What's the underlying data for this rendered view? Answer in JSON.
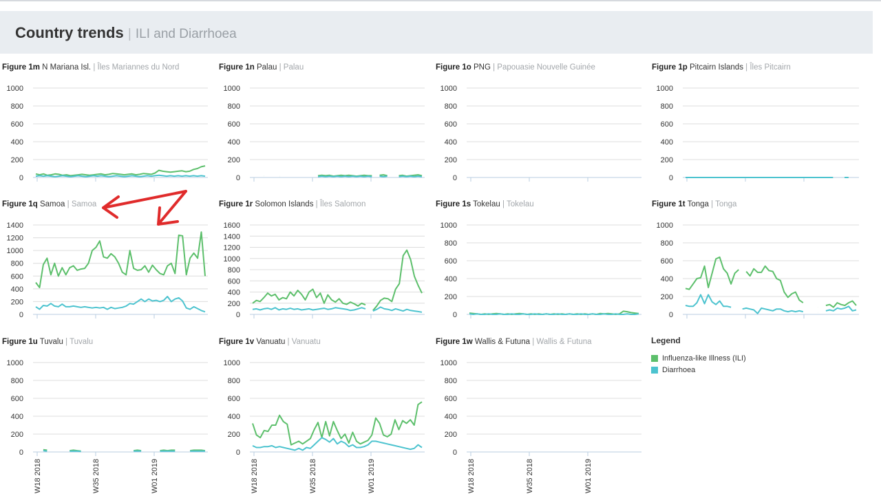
{
  "header": {
    "title": "Country trends",
    "separator": "|",
    "subtitle": "ILI and Diarrhoea"
  },
  "legend": {
    "title": "Legend",
    "items": [
      {
        "label": "Influenza-like Illness (ILI)",
        "color": "#5cbf6b"
      },
      {
        "label": "Diarrhoea",
        "color": "#4cc3cf"
      }
    ]
  },
  "chart_data": [
    {
      "type": "line",
      "figure": "Figure 1m",
      "name": "N Mariana Isl.",
      "name_fr": "Îles Mariannes du Nord",
      "ylim": [
        0,
        1000
      ],
      "yticks": [
        "0",
        "200",
        "400",
        "600",
        "800",
        "1000"
      ],
      "xticks": [],
      "series": [
        {
          "name": "Influenza-like Illness (ILI)",
          "color": "#5cbf6b",
          "values": [
            40,
            30,
            40,
            25,
            30,
            40,
            35,
            25,
            30,
            20,
            25,
            30,
            35,
            30,
            25,
            30,
            35,
            40,
            30,
            35,
            45,
            40,
            35,
            30,
            35,
            40,
            30,
            35,
            45,
            40,
            35,
            50,
            80,
            70,
            65,
            60,
            65,
            70,
            75,
            65,
            70,
            90,
            100,
            120,
            130
          ]
        },
        {
          "name": "Diarrhoea",
          "color": "#4cc3cf",
          "values": [
            15,
            20,
            15,
            20,
            15,
            10,
            15,
            20,
            15,
            10,
            15,
            20,
            15,
            10,
            15,
            20,
            15,
            20,
            15,
            10,
            15,
            20,
            15,
            10,
            15,
            20,
            15,
            10,
            15,
            20,
            15,
            20,
            25,
            20,
            15,
            20,
            15,
            20,
            15,
            20,
            15,
            20,
            15,
            20,
            15
          ]
        }
      ]
    },
    {
      "type": "line",
      "figure": "Figure 1n",
      "name": "Palau",
      "name_fr": "Palau",
      "ylim": [
        0,
        1000
      ],
      "yticks": [
        "0",
        "200",
        "400",
        "600",
        "800",
        "1000"
      ],
      "xticks": [],
      "series": [
        {
          "name": "Influenza-like Illness (ILI)",
          "color": "#5cbf6b",
          "values": [
            null,
            null,
            null,
            20,
            null,
            null,
            null,
            15,
            null,
            null,
            null,
            null,
            null,
            null,
            null,
            null,
            null,
            20,
            25,
            20,
            25,
            15,
            20,
            25,
            20,
            25,
            20,
            15,
            20,
            25,
            20,
            20,
            null,
            25,
            30,
            20,
            null,
            null,
            20,
            25,
            15,
            20,
            25,
            30,
            20
          ]
        },
        {
          "name": "Diarrhoea",
          "color": "#4cc3cf",
          "values": [
            null,
            null,
            null,
            15,
            null,
            null,
            null,
            10,
            null,
            null,
            null,
            null,
            null,
            null,
            null,
            null,
            null,
            10,
            15,
            10,
            15,
            10,
            15,
            10,
            15,
            10,
            15,
            10,
            15,
            10,
            15,
            10,
            null,
            15,
            10,
            15,
            null,
            null,
            10,
            15,
            10,
            15,
            10,
            15,
            10
          ]
        }
      ]
    },
    {
      "type": "line",
      "figure": "Figure 1o",
      "name": "PNG",
      "name_fr": "Papouasie Nouvelle Guinée",
      "ylim": [
        0,
        1000
      ],
      "yticks": [
        "0",
        "200",
        "400",
        "600",
        "800",
        "1000"
      ],
      "xticks": [],
      "series": []
    },
    {
      "type": "line",
      "figure": "Figure 1p",
      "name": "Pitcairn Islands",
      "name_fr": "Îles Pitcairn",
      "ylim": [
        0,
        1000
      ],
      "yticks": [
        "0",
        "200",
        "400",
        "600",
        "800",
        "1000"
      ],
      "xticks": [],
      "series": [
        {
          "name": "Influenza-like Illness (ILI)",
          "color": "#5cbf6b",
          "values": [
            0,
            0,
            0,
            0,
            0,
            0,
            0,
            0,
            0,
            0,
            0,
            0,
            0,
            0,
            0,
            0,
            0,
            0,
            0,
            0,
            0,
            0,
            0,
            0,
            0,
            0,
            0,
            0,
            0,
            0,
            0,
            0,
            0,
            0,
            0,
            0,
            0,
            0,
            0,
            null,
            null,
            0,
            0,
            null,
            null
          ]
        },
        {
          "name": "Diarrhoea",
          "color": "#4cc3cf",
          "values": [
            0,
            0,
            0,
            0,
            0,
            0,
            0,
            0,
            0,
            0,
            0,
            0,
            0,
            0,
            0,
            0,
            0,
            0,
            0,
            0,
            0,
            0,
            0,
            0,
            0,
            0,
            0,
            0,
            0,
            0,
            0,
            0,
            0,
            0,
            0,
            0,
            0,
            0,
            0,
            null,
            null,
            0,
            0,
            null,
            null
          ]
        }
      ]
    },
    {
      "type": "line",
      "figure": "Figure 1q",
      "name": "Samoa",
      "name_fr": "Samoa",
      "ylim": [
        0,
        1400
      ],
      "yticks": [
        "0",
        "200",
        "400",
        "600",
        "800",
        "1000",
        "1200",
        "1400"
      ],
      "xticks": [],
      "series": [
        {
          "name": "Influenza-like Illness (ILI)",
          "color": "#5cbf6b",
          "values": [
            500,
            420,
            780,
            880,
            620,
            800,
            600,
            730,
            620,
            730,
            760,
            690,
            710,
            720,
            800,
            1000,
            1050,
            1150,
            900,
            880,
            950,
            900,
            800,
            660,
            620,
            1000,
            720,
            690,
            700,
            760,
            660,
            770,
            700,
            640,
            620,
            760,
            800,
            640,
            1240,
            1230,
            620,
            880,
            960,
            880,
            1290,
            600
          ]
        },
        {
          "name": "Diarrhoea",
          "color": "#4cc3cf",
          "values": [
            120,
            80,
            140,
            130,
            170,
            130,
            120,
            160,
            120,
            120,
            130,
            120,
            110,
            120,
            110,
            100,
            110,
            100,
            110,
            80,
            110,
            90,
            100,
            110,
            130,
            170,
            160,
            200,
            240,
            200,
            240,
            210,
            220,
            200,
            220,
            280,
            200,
            240,
            260,
            210,
            100,
            80,
            120,
            90,
            60,
            40
          ]
        }
      ]
    },
    {
      "type": "line",
      "figure": "Figure 1r",
      "name": "Solomon Islands",
      "name_fr": "Îles Salomon",
      "ylim": [
        0,
        1600
      ],
      "yticks": [
        "0",
        "200",
        "400",
        "600",
        "800",
        "1000",
        "1200",
        "1400",
        "1600"
      ],
      "xticks": [],
      "series": [
        {
          "name": "Influenza-like Illness (ILI)",
          "color": "#5cbf6b",
          "values": [
            200,
            250,
            230,
            300,
            380,
            330,
            360,
            260,
            300,
            280,
            400,
            330,
            430,
            360,
            260,
            400,
            450,
            300,
            380,
            200,
            350,
            260,
            220,
            280,
            200,
            180,
            220,
            190,
            150,
            200,
            170,
            null,
            70,
            150,
            250,
            290,
            280,
            230,
            450,
            550,
            1050,
            1150,
            980,
            680,
            520,
            380
          ]
        },
        {
          "name": "Diarrhoea",
          "color": "#4cc3cf",
          "values": [
            90,
            100,
            80,
            100,
            110,
            90,
            120,
            80,
            100,
            90,
            110,
            90,
            100,
            80,
            90,
            100,
            80,
            90,
            100,
            110,
            90,
            100,
            120,
            110,
            100,
            90,
            70,
            80,
            100,
            120,
            100,
            null,
            60,
            90,
            130,
            100,
            90,
            70,
            100,
            80,
            60,
            90,
            70,
            60,
            50,
            40
          ]
        }
      ]
    },
    {
      "type": "line",
      "figure": "Figure 1s",
      "name": "Tokelau",
      "name_fr": "Tokelau",
      "ylim": [
        0,
        1000
      ],
      "yticks": [
        "0",
        "200",
        "400",
        "600",
        "800",
        "1000"
      ],
      "xticks": [],
      "series": [
        {
          "name": "Influenza-like Illness (ILI)",
          "color": "#5cbf6b",
          "values": [
            15,
            10,
            5,
            0,
            5,
            0,
            5,
            10,
            5,
            0,
            5,
            0,
            5,
            10,
            5,
            0,
            5,
            0,
            5,
            0,
            5,
            0,
            5,
            0,
            5,
            0,
            5,
            0,
            5,
            0,
            5,
            0,
            5,
            0,
            10,
            5,
            10,
            5,
            0,
            5,
            35,
            30,
            20,
            15,
            10
          ]
        },
        {
          "name": "Diarrhoea",
          "color": "#4cc3cf",
          "values": [
            5,
            0,
            5,
            0,
            0,
            5,
            0,
            0,
            5,
            0,
            0,
            5,
            0,
            0,
            5,
            0,
            0,
            5,
            0,
            0,
            5,
            0,
            0,
            5,
            0,
            0,
            5,
            0,
            0,
            5,
            0,
            0,
            5,
            0,
            0,
            5,
            0,
            0,
            5,
            0,
            0,
            5,
            0,
            0,
            5
          ]
        }
      ]
    },
    {
      "type": "line",
      "figure": "Figure 1t",
      "name": "Tonga",
      "name_fr": "Tonga",
      "ylim": [
        0,
        1000
      ],
      "yticks": [
        "0",
        "200",
        "400",
        "600",
        "800",
        "1000"
      ],
      "xticks": [],
      "series": [
        {
          "name": "Influenza-like Illness (ILI)",
          "color": "#5cbf6b",
          "values": [
            290,
            280,
            340,
            400,
            410,
            540,
            300,
            460,
            620,
            640,
            510,
            460,
            340,
            460,
            500,
            null,
            480,
            430,
            510,
            470,
            470,
            540,
            490,
            480,
            400,
            380,
            250,
            190,
            230,
            250,
            160,
            130,
            null,
            null,
            null,
            80,
            null,
            100,
            110,
            80,
            130,
            110,
            100,
            130,
            150,
            100
          ]
        },
        {
          "name": "Diarrhoea",
          "color": "#4cc3cf",
          "values": [
            100,
            90,
            90,
            130,
            220,
            120,
            220,
            140,
            110,
            150,
            90,
            90,
            80,
            null,
            null,
            60,
            70,
            60,
            50,
            10,
            70,
            60,
            50,
            40,
            60,
            60,
            40,
            30,
            40,
            30,
            40,
            30,
            null,
            null,
            null,
            20,
            null,
            40,
            50,
            40,
            70,
            60,
            70,
            90,
            40,
            50
          ]
        }
      ]
    },
    {
      "type": "line",
      "figure": "Figure 1u",
      "name": "Tuvalu",
      "name_fr": "Tuvalu",
      "ylim": [
        0,
        1000
      ],
      "yticks": [
        "0",
        "200",
        "400",
        "600",
        "800",
        "1000"
      ],
      "xticks": [
        "W18 2018",
        "W35 2018",
        "W01 2019"
      ],
      "series": [
        {
          "name": "Influenza-like Illness (ILI)",
          "color": "#5cbf6b",
          "values": [
            null,
            null,
            25,
            20,
            null,
            null,
            null,
            null,
            null,
            15,
            20,
            15,
            10,
            null,
            null,
            null,
            null,
            null,
            null,
            null,
            null,
            null,
            null,
            null,
            null,
            null,
            15,
            20,
            15,
            null,
            null,
            null,
            null,
            15,
            20,
            15,
            20,
            20,
            null,
            null,
            null,
            15,
            20,
            20,
            20,
            15
          ]
        },
        {
          "name": "Diarrhoea",
          "color": "#4cc3cf",
          "values": [
            null,
            null,
            15,
            10,
            null,
            null,
            null,
            null,
            null,
            10,
            10,
            10,
            5,
            null,
            null,
            null,
            null,
            null,
            null,
            null,
            null,
            null,
            null,
            null,
            null,
            null,
            10,
            10,
            10,
            null,
            null,
            null,
            null,
            10,
            10,
            10,
            10,
            10,
            null,
            null,
            null,
            10,
            10,
            10,
            10,
            10
          ]
        }
      ]
    },
    {
      "type": "line",
      "figure": "Figure 1v",
      "name": "Vanuatu",
      "name_fr": "Vanuatu",
      "ylim": [
        0,
        1000
      ],
      "yticks": [
        "0",
        "200",
        "400",
        "600",
        "800",
        "1000"
      ],
      "xticks": [
        "W18 2018",
        "W35 2018",
        "W01 2019"
      ],
      "series": [
        {
          "name": "Influenza-like Illness (ILI)",
          "color": "#5cbf6b",
          "values": [
            320,
            190,
            160,
            240,
            230,
            300,
            300,
            410,
            340,
            310,
            80,
            100,
            120,
            90,
            120,
            150,
            250,
            330,
            160,
            340,
            180,
            340,
            240,
            150,
            200,
            100,
            220,
            120,
            90,
            110,
            130,
            190,
            380,
            320,
            190,
            170,
            200,
            360,
            250,
            350,
            320,
            360,
            300,
            530,
            560
          ]
        },
        {
          "name": "Diarrhoea",
          "color": "#4cc3cf",
          "values": [
            70,
            50,
            50,
            60,
            60,
            70,
            50,
            60,
            50,
            40,
            30,
            20,
            40,
            20,
            50,
            40,
            80,
            120,
            160,
            140,
            110,
            150,
            90,
            120,
            100,
            60,
            80,
            50,
            50,
            60,
            80,
            120,
            120,
            110,
            100,
            90,
            80,
            70,
            60,
            50,
            40,
            30,
            40,
            80,
            50
          ]
        }
      ]
    },
    {
      "type": "line",
      "figure": "Figure 1w",
      "name": "Wallis & Futuna",
      "name_fr": "Wallis & Futuna",
      "ylim": [
        0,
        1000
      ],
      "yticks": [
        "0",
        "200",
        "400",
        "600",
        "800",
        "1000"
      ],
      "xticks": [
        "W18 2018",
        "W35 2018",
        "W01 2019"
      ],
      "series": []
    }
  ]
}
